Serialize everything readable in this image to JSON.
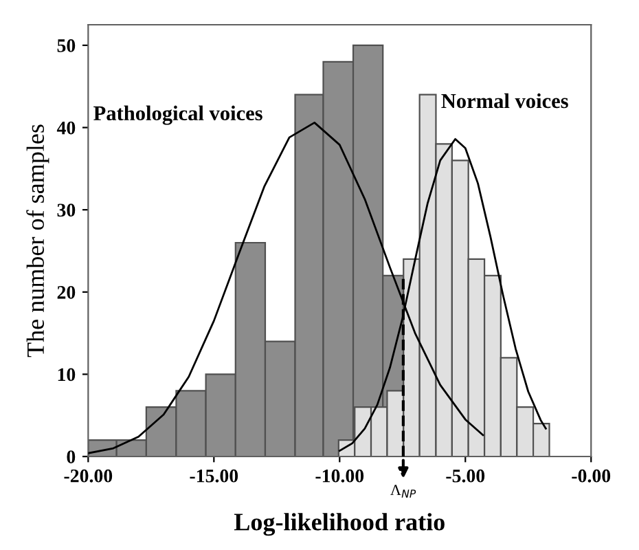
{
  "chart_data": {
    "type": "histogram",
    "xlabel": "Log-likelihood ratio",
    "ylabel": "The number of samples",
    "xlim": [
      -20,
      0
    ],
    "ylim": [
      0,
      52.5
    ],
    "xticks": [
      {
        "value": -20,
        "label": "-20.00"
      },
      {
        "value": -15,
        "label": "-15.00"
      },
      {
        "value": -10,
        "label": "-10.00"
      },
      {
        "value": -5,
        "label": "-5.00"
      },
      {
        "value": 0,
        "label": "-0.00"
      }
    ],
    "yticks": [
      0,
      10,
      20,
      30,
      40,
      50
    ],
    "series": [
      {
        "name": "Pathological voices",
        "color": "#8c8c8c",
        "bins": [
          -20,
          -18.87,
          -17.69,
          -16.5,
          -15.32,
          -14.14,
          -12.96,
          -11.77,
          -10.65,
          -9.46,
          -8.28,
          -7.46
        ],
        "values": [
          2,
          2,
          6,
          8,
          10,
          26,
          14,
          44,
          48,
          50,
          22
        ]
      },
      {
        "name": "Normal voices",
        "color": "#e0e0e0",
        "bins": [
          -10.04,
          -9.4,
          -8.75,
          -8.11,
          -7.46,
          -6.82,
          -6.17,
          -5.53,
          -4.88,
          -4.24,
          -3.59,
          -2.95,
          -2.3,
          -1.66
        ],
        "values": [
          2,
          6,
          6,
          8,
          24,
          44,
          38,
          36,
          24,
          22,
          12,
          6,
          4
        ]
      },
      {
        "type": "line",
        "color": "#000000",
        "x": [
          -20,
          -19,
          -18,
          -17,
          -16,
          -15,
          -14,
          -13,
          -12,
          -11,
          -10,
          -9,
          -8,
          -7,
          -6,
          -5,
          -4.3
        ],
        "values": [
          0.4,
          1,
          2.4,
          5.1,
          9.7,
          16.5,
          24.7,
          32.8,
          38.8,
          40.6,
          37.9,
          31.3,
          23,
          15,
          8.7,
          4.5,
          2.6
        ]
      },
      {
        "type": "line",
        "color": "#000000",
        "x": [
          -10,
          -9.5,
          -9,
          -8.5,
          -8,
          -7.5,
          -7,
          -6.5,
          -6,
          -5.4,
          -5,
          -4.5,
          -4,
          -3.5,
          -3,
          -2.5,
          -2,
          -1.8
        ],
        "values": [
          0.7,
          1.6,
          3.4,
          6.3,
          10.8,
          16.8,
          23.9,
          30.8,
          36,
          38.6,
          37.5,
          33.2,
          26.7,
          19.6,
          13.1,
          7.9,
          4.4,
          3.4
        ]
      }
    ],
    "ref_lines": [
      {
        "axis": "x",
        "value": -7.47,
        "label": "Λ$_{NP}$",
        "color": "#000000",
        "line_style": "dashed"
      }
    ],
    "grid": false,
    "legend": false
  }
}
